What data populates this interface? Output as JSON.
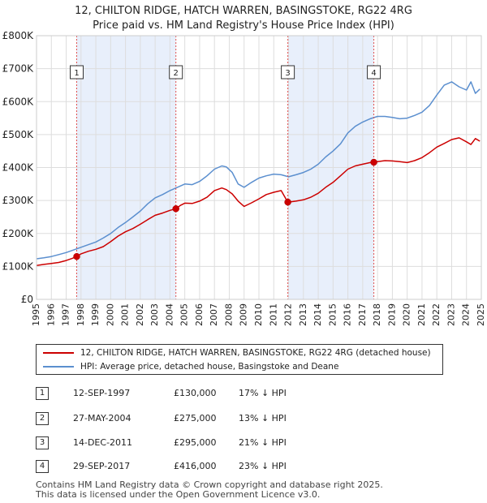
{
  "title_line1": "12, CHILTON RIDGE, HATCH WARREN, BASINGSTOKE, RG22 4RG",
  "title_line2": "Price paid vs. HM Land Registry's House Price Index (HPI)",
  "colors": {
    "property": "#cc0000",
    "hpi": "#5b8fcf",
    "shade": "#e8effb",
    "marker_line": "#e05050",
    "grid": "#dddddd"
  },
  "chart_data": {
    "type": "line",
    "xlim": [
      1995,
      2025
    ],
    "ylim": [
      0,
      800000
    ],
    "y_ticks": [
      {
        "value": 0,
        "label": "£0"
      },
      {
        "value": 100000,
        "label": "£100K"
      },
      {
        "value": 200000,
        "label": "£200K"
      },
      {
        "value": 300000,
        "label": "£300K"
      },
      {
        "value": 400000,
        "label": "£400K"
      },
      {
        "value": 500000,
        "label": "£500K"
      },
      {
        "value": 600000,
        "label": "£600K"
      },
      {
        "value": 700000,
        "label": "£700K"
      },
      {
        "value": 800000,
        "label": "£800K"
      }
    ],
    "x_ticks": [
      "1995",
      "1996",
      "1997",
      "1998",
      "1999",
      "2000",
      "2001",
      "2002",
      "2003",
      "2004",
      "2005",
      "2006",
      "2007",
      "2008",
      "2009",
      "2010",
      "2011",
      "2012",
      "2013",
      "2014",
      "2015",
      "2016",
      "2017",
      "2018",
      "2019",
      "2020",
      "2021",
      "2022",
      "2023",
      "2024",
      "2025"
    ],
    "shaded_periods": [
      [
        1997.7,
        2004.4
      ],
      [
        2011.95,
        2017.75
      ]
    ],
    "series": [
      {
        "name": "12, CHILTON RIDGE, HATCH WARREN, BASINGSTOKE, RG22 4RG (detached house)",
        "x": [
          1995.0,
          1995.5,
          1996.0,
          1996.5,
          1997.0,
          1997.4,
          1997.71,
          1998.0,
          1998.5,
          1999.0,
          1999.5,
          2000.0,
          2000.5,
          2001.0,
          2001.5,
          2002.0,
          2002.5,
          2003.0,
          2003.5,
          2004.0,
          2004.4,
          2004.7,
          2005.0,
          2005.5,
          2006.0,
          2006.5,
          2007.0,
          2007.5,
          2007.8,
          2008.2,
          2008.6,
          2009.0,
          2009.5,
          2010.0,
          2010.5,
          2011.0,
          2011.5,
          2011.95,
          2012.5,
          2013.0,
          2013.5,
          2014.0,
          2014.5,
          2015.0,
          2015.5,
          2016.0,
          2016.5,
          2017.0,
          2017.5,
          2017.75,
          2018.0,
          2018.5,
          2019.0,
          2019.5,
          2020.0,
          2020.5,
          2021.0,
          2021.5,
          2022.0,
          2022.5,
          2023.0,
          2023.5,
          2024.0,
          2024.3,
          2024.6,
          2024.9
        ],
        "values": [
          103000,
          106000,
          109000,
          112000,
          118000,
          124000,
          130000,
          138000,
          146000,
          152000,
          160000,
          175000,
          192000,
          205000,
          215000,
          228000,
          242000,
          255000,
          262000,
          270000,
          275000,
          285000,
          292000,
          291000,
          298000,
          310000,
          330000,
          338000,
          333000,
          320000,
          298000,
          282000,
          293000,
          305000,
          318000,
          325000,
          330000,
          295000,
          298000,
          302000,
          310000,
          322000,
          340000,
          355000,
          375000,
          395000,
          405000,
          410000,
          415000,
          416000,
          418000,
          421000,
          420000,
          418000,
          415000,
          421000,
          430000,
          445000,
          462000,
          473000,
          485000,
          490000,
          478000,
          470000,
          488000,
          480000
        ]
      },
      {
        "name": "HPI: Average price, detached house, Basingstoke and Deane",
        "x": [
          1995.0,
          1995.5,
          1996.0,
          1996.5,
          1997.0,
          1997.5,
          1998.0,
          1998.5,
          1999.0,
          1999.5,
          2000.0,
          2000.5,
          2001.0,
          2001.5,
          2002.0,
          2002.5,
          2003.0,
          2003.5,
          2004.0,
          2004.5,
          2005.0,
          2005.5,
          2006.0,
          2006.5,
          2007.0,
          2007.5,
          2007.8,
          2008.2,
          2008.6,
          2009.0,
          2009.5,
          2010.0,
          2010.5,
          2011.0,
          2011.5,
          2012.0,
          2012.5,
          2013.0,
          2013.5,
          2014.0,
          2014.5,
          2015.0,
          2015.5,
          2016.0,
          2016.5,
          2017.0,
          2017.5,
          2018.0,
          2018.5,
          2019.0,
          2019.5,
          2020.0,
          2020.5,
          2021.0,
          2021.5,
          2022.0,
          2022.5,
          2023.0,
          2023.5,
          2024.0,
          2024.3,
          2024.6,
          2024.9
        ],
        "values": [
          123000,
          126000,
          130000,
          136000,
          142000,
          150000,
          158000,
          166000,
          174000,
          186000,
          200000,
          218000,
          233000,
          250000,
          268000,
          290000,
          308000,
          318000,
          330000,
          340000,
          350000,
          348000,
          358000,
          375000,
          395000,
          405000,
          402000,
          385000,
          350000,
          340000,
          355000,
          368000,
          375000,
          380000,
          378000,
          372000,
          378000,
          385000,
          395000,
          410000,
          432000,
          450000,
          472000,
          505000,
          525000,
          538000,
          548000,
          555000,
          555000,
          552000,
          548000,
          550000,
          558000,
          568000,
          588000,
          620000,
          650000,
          660000,
          645000,
          635000,
          660000,
          625000,
          638000
        ]
      }
    ],
    "sales": [
      {
        "label": "1",
        "x": 1997.71,
        "value": 130000
      },
      {
        "label": "2",
        "x": 2004.4,
        "value": 275000
      },
      {
        "label": "3",
        "x": 2011.95,
        "value": 295000
      },
      {
        "label": "4",
        "x": 2017.75,
        "value": 416000
      }
    ]
  },
  "legend": {
    "property_label": "12, CHILTON RIDGE, HATCH WARREN, BASINGSTOKE, RG22 4RG (detached house)",
    "hpi_label": "HPI: Average price, detached house, Basingstoke and Deane"
  },
  "transactions": [
    {
      "num": "1",
      "date": "12-SEP-1997",
      "price": "£130,000",
      "hpi": "17% ↓ HPI"
    },
    {
      "num": "2",
      "date": "27-MAY-2004",
      "price": "£275,000",
      "hpi": "13% ↓ HPI"
    },
    {
      "num": "3",
      "date": "14-DEC-2011",
      "price": "£295,000",
      "hpi": "21% ↓ HPI"
    },
    {
      "num": "4",
      "date": "29-SEP-2017",
      "price": "£416,000",
      "hpi": "23% ↓ HPI"
    }
  ],
  "footer_line1": "Contains HM Land Registry data © Crown copyright and database right 2025.",
  "footer_line2": "This data is licensed under the Open Government Licence v3.0."
}
